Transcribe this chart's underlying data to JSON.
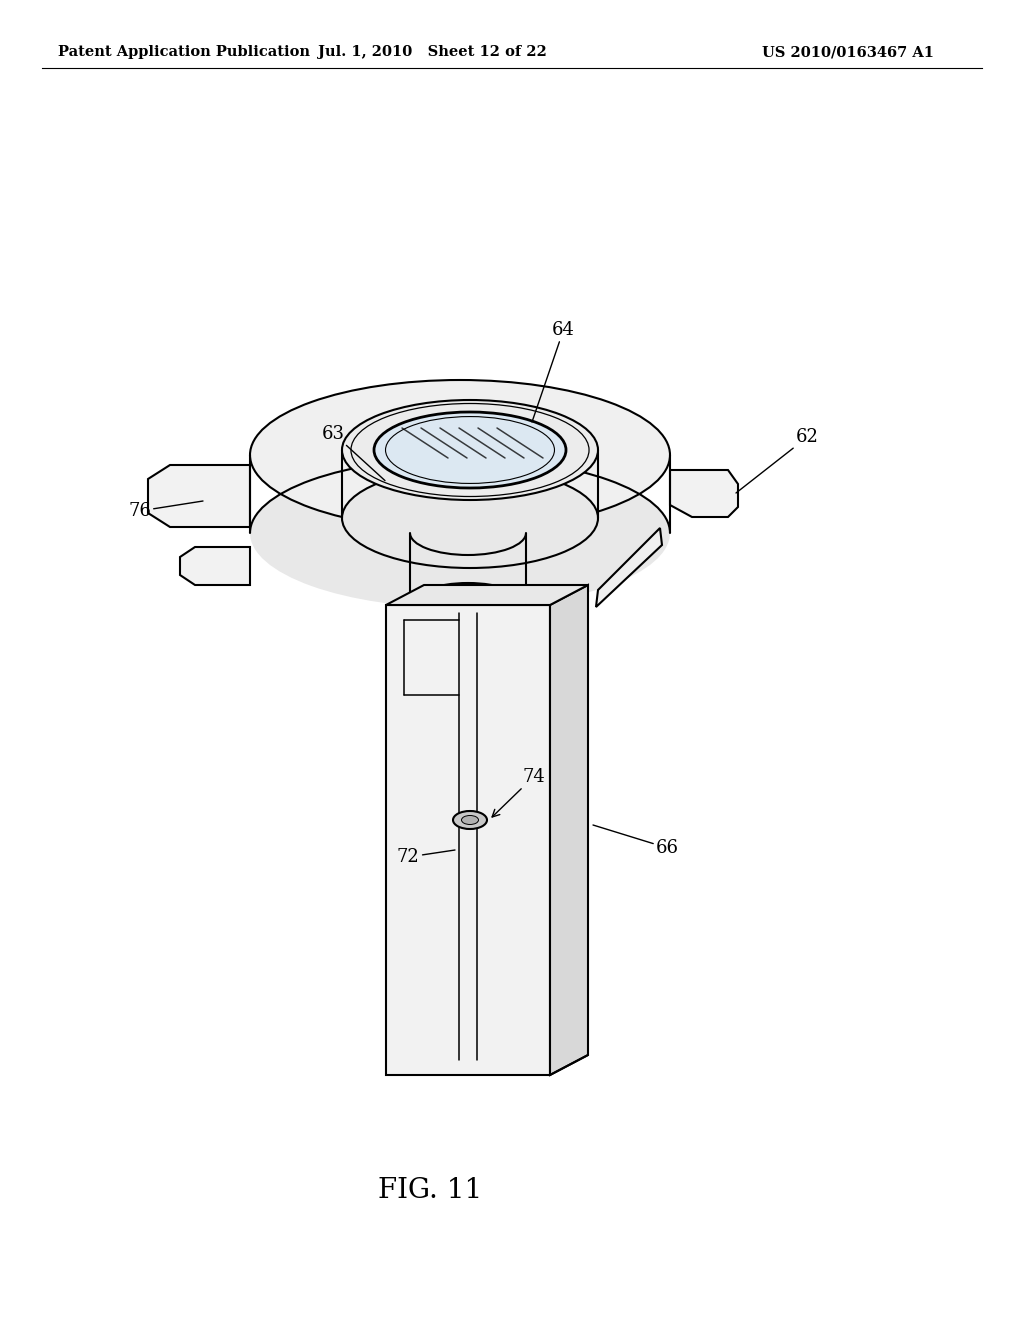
{
  "background_color": "#ffffff",
  "header_left": "Patent Application Publication",
  "header_mid": "Jul. 1, 2010   Sheet 12 of 22",
  "header_right": "US 2010/0163467 A1",
  "figure_label": "FIG. 11",
  "header_fontsize": 10.5,
  "figure_label_fontsize": 20,
  "line_color": "#000000",
  "line_width": 1.5
}
